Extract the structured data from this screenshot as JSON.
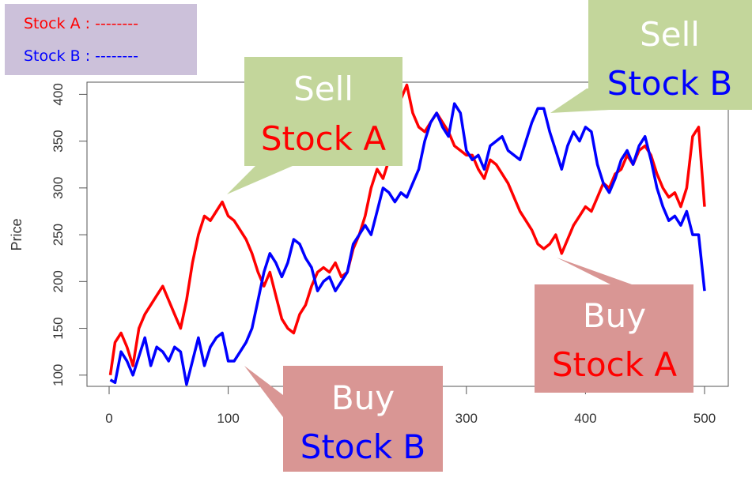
{
  "legend": {
    "items": [
      {
        "label": "Stock A : --------",
        "color": "#ff0000"
      },
      {
        "label": "Stock B : --------",
        "color": "#0000ff"
      }
    ],
    "background": "#ccc1da"
  },
  "callouts": {
    "sell_a": {
      "line1": "Sell",
      "line2": "Stock A",
      "line1_color": "#ffffff",
      "line2_color": "#ff0000",
      "fill": "#c3d69b"
    },
    "sell_b": {
      "line1": "Sell",
      "line2": "Stock B",
      "line1_color": "#ffffff",
      "line2_color": "#0000ff",
      "fill": "#c3d69b"
    },
    "buy_a": {
      "line1": "Buy",
      "line2": "Stock A",
      "line1_color": "#ffffff",
      "line2_color": "#ff0000",
      "fill": "#d99694"
    },
    "buy_b": {
      "line1": "Buy",
      "line2": "Stock B",
      "line1_color": "#ffffff",
      "line2_color": "#0000ff",
      "fill": "#d99694"
    }
  },
  "chart_data": {
    "type": "line",
    "title": "",
    "xlabel": "",
    "ylabel": "Price",
    "xlim": [
      0,
      500
    ],
    "ylim": [
      88,
      413
    ],
    "x_ticks": [
      0,
      100,
      200,
      300,
      400,
      500
    ],
    "y_ticks": [
      100,
      150,
      200,
      250,
      300,
      350,
      400
    ],
    "grid": false,
    "series": [
      {
        "name": "Stock A",
        "color": "#ff0000",
        "x": [
          1,
          5,
          10,
          15,
          20,
          25,
          30,
          35,
          40,
          45,
          50,
          55,
          60,
          65,
          70,
          75,
          80,
          85,
          90,
          95,
          100,
          105,
          110,
          115,
          120,
          125,
          130,
          135,
          140,
          145,
          150,
          155,
          160,
          165,
          170,
          175,
          180,
          185,
          190,
          195,
          200,
          205,
          210,
          215,
          220,
          225,
          230,
          235,
          240,
          245,
          250,
          255,
          260,
          265,
          270,
          275,
          280,
          285,
          290,
          295,
          300,
          305,
          310,
          315,
          320,
          325,
          330,
          335,
          340,
          345,
          350,
          355,
          360,
          365,
          370,
          375,
          380,
          385,
          390,
          395,
          400,
          405,
          410,
          415,
          420,
          425,
          430,
          435,
          440,
          445,
          450,
          455,
          460,
          465,
          470,
          475,
          480,
          485,
          490,
          495,
          500
        ],
        "values": [
          100,
          135,
          145,
          130,
          110,
          150,
          165,
          175,
          185,
          195,
          180,
          165,
          150,
          180,
          220,
          250,
          270,
          265,
          275,
          285,
          270,
          265,
          255,
          245,
          230,
          210,
          195,
          210,
          185,
          160,
          150,
          145,
          165,
          175,
          195,
          210,
          215,
          210,
          220,
          205,
          210,
          235,
          250,
          270,
          300,
          320,
          310,
          330,
          360,
          395,
          410,
          380,
          365,
          360,
          370,
          380,
          370,
          360,
          345,
          340,
          335,
          335,
          320,
          310,
          330,
          325,
          315,
          305,
          290,
          275,
          265,
          255,
          240,
          235,
          240,
          250,
          230,
          245,
          260,
          270,
          280,
          275,
          290,
          305,
          300,
          315,
          320,
          335,
          325,
          340,
          345,
          335,
          315,
          300,
          290,
          295,
          280,
          300,
          355,
          365,
          280
        ]
      },
      {
        "name": "Stock B",
        "color": "#0000ff",
        "x": [
          1,
          5,
          10,
          15,
          20,
          25,
          30,
          35,
          40,
          45,
          50,
          55,
          60,
          65,
          70,
          75,
          80,
          85,
          90,
          95,
          100,
          105,
          110,
          115,
          120,
          125,
          130,
          135,
          140,
          145,
          150,
          155,
          160,
          165,
          170,
          175,
          180,
          185,
          190,
          195,
          200,
          205,
          210,
          215,
          220,
          225,
          230,
          235,
          240,
          245,
          250,
          255,
          260,
          265,
          270,
          275,
          280,
          285,
          290,
          295,
          300,
          305,
          310,
          315,
          320,
          325,
          330,
          335,
          340,
          345,
          350,
          355,
          360,
          365,
          370,
          375,
          380,
          385,
          390,
          395,
          400,
          405,
          410,
          415,
          420,
          425,
          430,
          435,
          440,
          445,
          450,
          455,
          460,
          465,
          470,
          475,
          480,
          485,
          490,
          495,
          500
        ],
        "values": [
          95,
          92,
          125,
          115,
          100,
          120,
          140,
          110,
          130,
          125,
          115,
          130,
          125,
          90,
          115,
          140,
          110,
          130,
          140,
          145,
          115,
          115,
          125,
          135,
          150,
          180,
          210,
          230,
          220,
          205,
          220,
          245,
          240,
          225,
          215,
          190,
          200,
          205,
          190,
          200,
          210,
          240,
          250,
          260,
          250,
          275,
          300,
          295,
          285,
          295,
          290,
          305,
          320,
          350,
          370,
          380,
          365,
          355,
          390,
          380,
          340,
          330,
          335,
          320,
          345,
          350,
          355,
          340,
          335,
          330,
          350,
          370,
          385,
          385,
          360,
          340,
          320,
          345,
          360,
          350,
          365,
          360,
          325,
          305,
          295,
          310,
          330,
          340,
          325,
          345,
          355,
          330,
          300,
          280,
          265,
          270,
          260,
          275,
          250,
          250,
          190
        ]
      }
    ]
  }
}
